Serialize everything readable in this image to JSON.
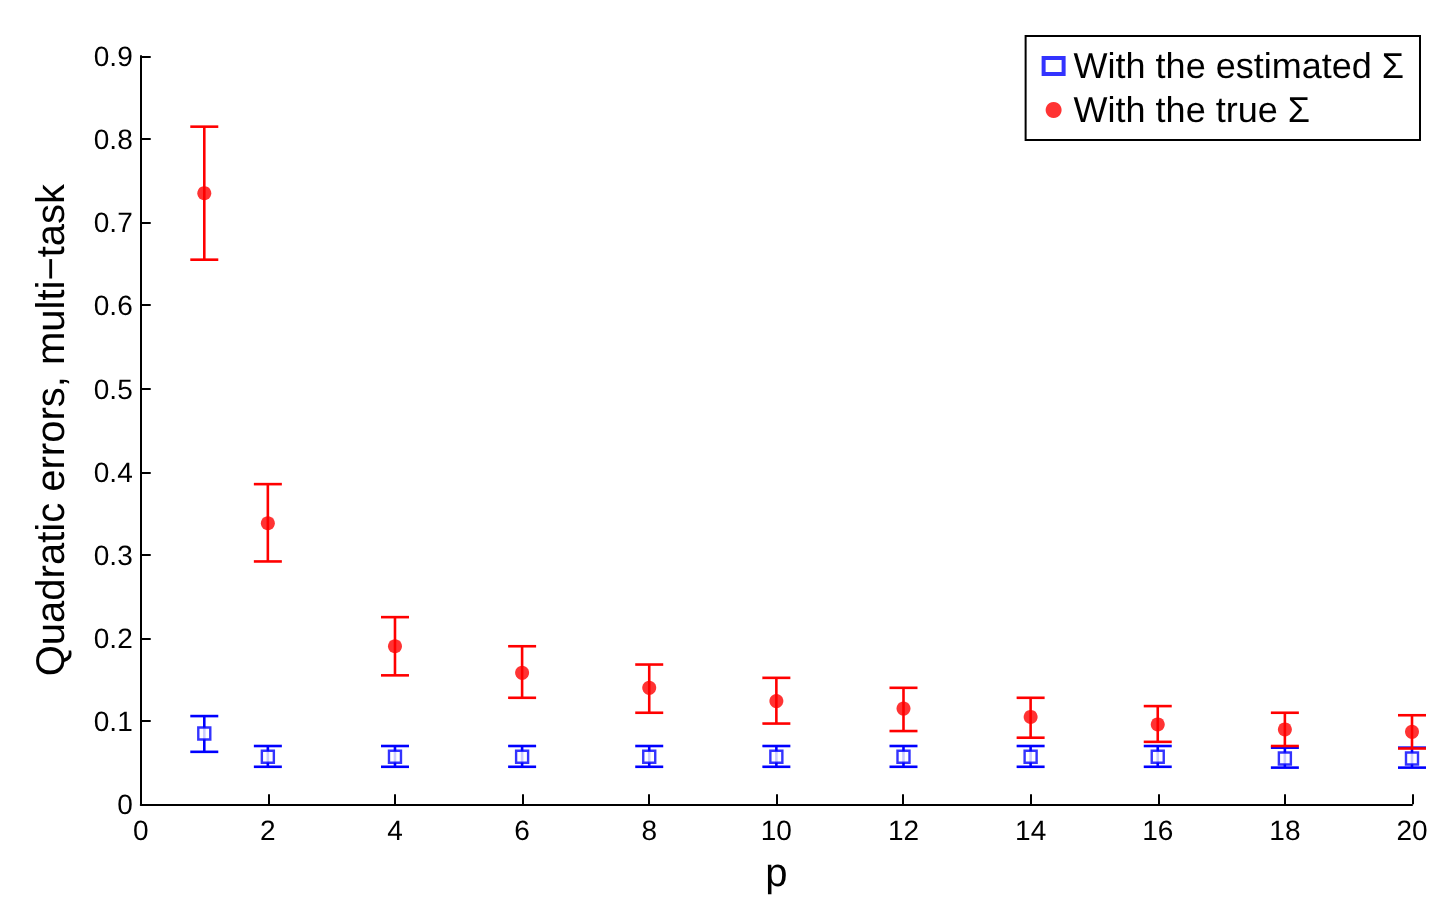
{
  "chart_data": {
    "type": "scatter",
    "xlabel": "p",
    "ylabel": "Quadratic errors, multi−task",
    "xlim": [
      0,
      20
    ],
    "xticks": [
      0,
      2,
      4,
      6,
      8,
      10,
      12,
      14,
      16,
      18,
      20
    ],
    "ylim": [
      0,
      0.9
    ],
    "yticks": [
      0,
      0.1,
      0.2,
      0.3,
      0.4,
      0.5,
      0.6,
      0.7,
      0.8,
      0.9
    ],
    "grid": false,
    "legend": "top right",
    "x": [
      1,
      2,
      4,
      6,
      8,
      10,
      12,
      14,
      16,
      18,
      20
    ],
    "series": [
      {
        "name": "With the estimated Σ",
        "color": "#0000ff",
        "marker": "square",
        "values": [
          0.085,
          0.057,
          0.057,
          0.057,
          0.057,
          0.057,
          0.057,
          0.057,
          0.057,
          0.055,
          0.055
        ],
        "errors": [
          [
            0.063,
            0.106
          ],
          [
            0.045,
            0.07
          ],
          [
            0.045,
            0.07
          ],
          [
            0.045,
            0.07
          ],
          [
            0.045,
            0.07
          ],
          [
            0.045,
            0.07
          ],
          [
            0.045,
            0.07
          ],
          [
            0.045,
            0.07
          ],
          [
            0.045,
            0.07
          ],
          [
            0.044,
            0.068
          ],
          [
            0.044,
            0.068
          ]
        ]
      },
      {
        "name": "With the true Σ",
        "color": "#ff0000",
        "marker": "circle",
        "values": [
          0.735,
          0.338,
          0.19,
          0.158,
          0.14,
          0.124,
          0.115,
          0.105,
          0.096,
          0.09,
          0.087
        ],
        "errors": [
          [
            0.655,
            0.815
          ],
          [
            0.292,
            0.385
          ],
          [
            0.155,
            0.225
          ],
          [
            0.128,
            0.19
          ],
          [
            0.11,
            0.168
          ],
          [
            0.097,
            0.152
          ],
          [
            0.088,
            0.14
          ],
          [
            0.08,
            0.128
          ],
          [
            0.075,
            0.118
          ],
          [
            0.07,
            0.11
          ],
          [
            0.067,
            0.107
          ]
        ]
      }
    ]
  }
}
